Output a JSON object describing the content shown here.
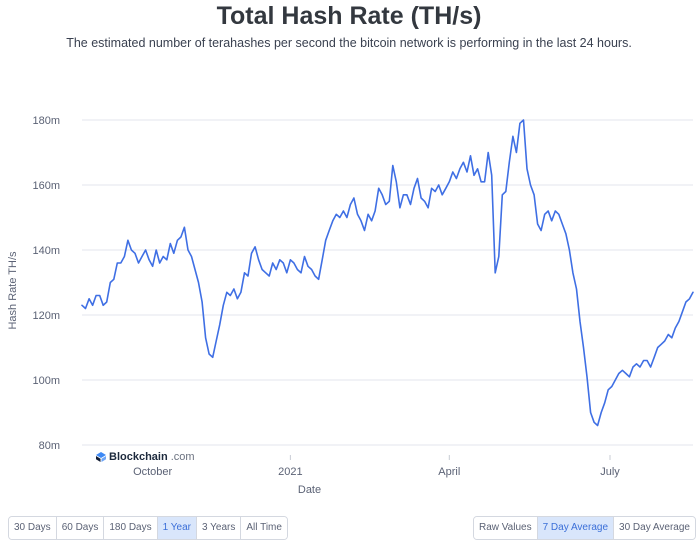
{
  "header": {
    "title": "Total Hash Rate (TH/s)",
    "subtitle": "The estimated number of terahashes per second the bitcoin network is performing in the last 24 hours."
  },
  "watermark": {
    "brand": "Blockchain",
    "domain": ".com"
  },
  "range_buttons": [
    {
      "label": "30 Days",
      "active": false
    },
    {
      "label": "60 Days",
      "active": false
    },
    {
      "label": "180 Days",
      "active": false
    },
    {
      "label": "1 Year",
      "active": true
    },
    {
      "label": "3 Years",
      "active": false
    },
    {
      "label": "All Time",
      "active": false
    }
  ],
  "mode_buttons": [
    {
      "label": "Raw Values",
      "active": false
    },
    {
      "label": "7 Day Average",
      "active": true
    },
    {
      "label": "30 Day Average",
      "active": false
    }
  ],
  "colors": {
    "line": "#3f6fe4",
    "grid": "#e3e6ec",
    "active_button_bg": "#d9e6fb"
  },
  "chart_data": {
    "type": "line",
    "title": "Total Hash Rate (TH/s)",
    "xlabel": "Date",
    "ylabel": "Hash Rate TH/s",
    "ylim": [
      80,
      180
    ],
    "y_ticks": [
      {
        "value": 80,
        "label": "80m"
      },
      {
        "value": 100,
        "label": "100m"
      },
      {
        "value": 120,
        "label": "120m"
      },
      {
        "value": 140,
        "label": "140m"
      },
      {
        "value": 160,
        "label": "160m"
      },
      {
        "value": 180,
        "label": "180m"
      }
    ],
    "xlim": [
      "2020-09-05",
      "2021-08-17"
    ],
    "x_ticks": [
      {
        "value": "2020-10-15",
        "label": "October"
      },
      {
        "value": "2021-01-01",
        "label": "2021"
      },
      {
        "value": "2021-04-01",
        "label": "April"
      },
      {
        "value": "2021-07-01",
        "label": "July"
      }
    ],
    "grid": "horizontal",
    "legend": "none",
    "series": [
      {
        "x": [
          "2020-09-05",
          "2020-09-07",
          "2020-09-09",
          "2020-09-11",
          "2020-09-13",
          "2020-09-15",
          "2020-09-17",
          "2020-09-19",
          "2020-09-21",
          "2020-09-23",
          "2020-09-25",
          "2020-09-27",
          "2020-09-29",
          "2020-10-01",
          "2020-10-03",
          "2020-10-05",
          "2020-10-07",
          "2020-10-09",
          "2020-10-11",
          "2020-10-13",
          "2020-10-15",
          "2020-10-17",
          "2020-10-19",
          "2020-10-21",
          "2020-10-23",
          "2020-10-25",
          "2020-10-27",
          "2020-10-29",
          "2020-10-31",
          "2020-11-02",
          "2020-11-04",
          "2020-11-06",
          "2020-11-08",
          "2020-11-10",
          "2020-11-12",
          "2020-11-14",
          "2020-11-16",
          "2020-11-18",
          "2020-11-20",
          "2020-11-22",
          "2020-11-24",
          "2020-11-26",
          "2020-11-28",
          "2020-11-30",
          "2020-12-02",
          "2020-12-04",
          "2020-12-06",
          "2020-12-08",
          "2020-12-10",
          "2020-12-12",
          "2020-12-14",
          "2020-12-16",
          "2020-12-18",
          "2020-12-20",
          "2020-12-22",
          "2020-12-24",
          "2020-12-26",
          "2020-12-28",
          "2020-12-30",
          "2021-01-01",
          "2021-01-03",
          "2021-01-05",
          "2021-01-07",
          "2021-01-09",
          "2021-01-11",
          "2021-01-13",
          "2021-01-15",
          "2021-01-17",
          "2021-01-19",
          "2021-01-21",
          "2021-01-23",
          "2021-01-25",
          "2021-01-27",
          "2021-01-29",
          "2021-01-31",
          "2021-02-02",
          "2021-02-04",
          "2021-02-06",
          "2021-02-08",
          "2021-02-10",
          "2021-02-12",
          "2021-02-14",
          "2021-02-16",
          "2021-02-18",
          "2021-02-20",
          "2021-02-22",
          "2021-02-24",
          "2021-02-26",
          "2021-02-28",
          "2021-03-02",
          "2021-03-04",
          "2021-03-06",
          "2021-03-08",
          "2021-03-10",
          "2021-03-12",
          "2021-03-14",
          "2021-03-16",
          "2021-03-18",
          "2021-03-20",
          "2021-03-22",
          "2021-03-24",
          "2021-03-26",
          "2021-03-28",
          "2021-03-30",
          "2021-04-01",
          "2021-04-03",
          "2021-04-05",
          "2021-04-07",
          "2021-04-09",
          "2021-04-11",
          "2021-04-13",
          "2021-04-15",
          "2021-04-17",
          "2021-04-19",
          "2021-04-21",
          "2021-04-23",
          "2021-04-25",
          "2021-04-27",
          "2021-04-29",
          "2021-05-01",
          "2021-05-03",
          "2021-05-05",
          "2021-05-07",
          "2021-05-09",
          "2021-05-11",
          "2021-05-13",
          "2021-05-15",
          "2021-05-17",
          "2021-05-19",
          "2021-05-21",
          "2021-05-23",
          "2021-05-25",
          "2021-05-27",
          "2021-05-29",
          "2021-05-31",
          "2021-06-02",
          "2021-06-04",
          "2021-06-06",
          "2021-06-08",
          "2021-06-10",
          "2021-06-12",
          "2021-06-14",
          "2021-06-16",
          "2021-06-18",
          "2021-06-20",
          "2021-06-22",
          "2021-06-24",
          "2021-06-26",
          "2021-06-28",
          "2021-06-30",
          "2021-07-02",
          "2021-07-04",
          "2021-07-06",
          "2021-07-08",
          "2021-07-10",
          "2021-07-12",
          "2021-07-14",
          "2021-07-16",
          "2021-07-18",
          "2021-07-20",
          "2021-07-22",
          "2021-07-24",
          "2021-07-26",
          "2021-07-28",
          "2021-07-30",
          "2021-08-01",
          "2021-08-03",
          "2021-08-05",
          "2021-08-07",
          "2021-08-09",
          "2021-08-11",
          "2021-08-13",
          "2021-08-15",
          "2021-08-17"
        ],
        "y": [
          123,
          122,
          125,
          123,
          126,
          126,
          123,
          124,
          130,
          131,
          136,
          136,
          138,
          143,
          140,
          139,
          136,
          138,
          140,
          137,
          135,
          140,
          136,
          138,
          137,
          142,
          139,
          143,
          144,
          147,
          140,
          138,
          134,
          130,
          124,
          113,
          108,
          107,
          112,
          117,
          123,
          127,
          126,
          128,
          125,
          127,
          133,
          132,
          139,
          141,
          137,
          134,
          133,
          132,
          136,
          134,
          137,
          136,
          133,
          137,
          136,
          134,
          133,
          138,
          135,
          134,
          132,
          131,
          137,
          143,
          146,
          149,
          151,
          150,
          152,
          150,
          154,
          156,
          151,
          149,
          146,
          151,
          149,
          152,
          159,
          157,
          154,
          155,
          166,
          161,
          153,
          157,
          157,
          154,
          159,
          162,
          156,
          155,
          153,
          159,
          158,
          160,
          157,
          159,
          161,
          164,
          162,
          165,
          167,
          164,
          169,
          163,
          165,
          161,
          161,
          170,
          163,
          133,
          138,
          157,
          158,
          167,
          175,
          170,
          179,
          180,
          165,
          160,
          157,
          148,
          146,
          151,
          152,
          149,
          152,
          151,
          148,
          145,
          140,
          133,
          128,
          118,
          110,
          101,
          90,
          87,
          86,
          90,
          93,
          97,
          98,
          100,
          102,
          103,
          102,
          101,
          104,
          105,
          104,
          106,
          106,
          104,
          107,
          110,
          111,
          112,
          114,
          113,
          116,
          118,
          121,
          124,
          125,
          127
        ]
      }
    ]
  }
}
